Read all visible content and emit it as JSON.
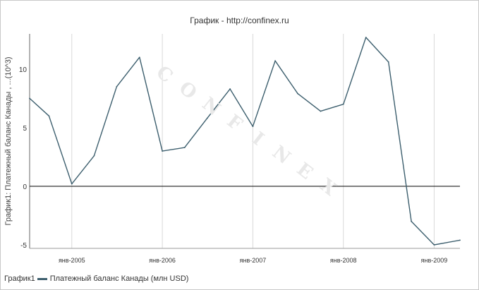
{
  "title": "График - http://confinex.ru",
  "watermark": "CONFINEX",
  "chart_data": {
    "type": "line",
    "ylabel": "График1: Платежный баланс Канады , ...(10^3)",
    "ylim": [
      -5.3,
      13
    ],
    "yticks": [
      -5,
      0,
      5,
      10
    ],
    "xlim": [
      "2004-07-15",
      "2009-04-15"
    ],
    "xticks": [
      {
        "label": "янв-2005",
        "date": "2005-01-01"
      },
      {
        "label": "янв-2006",
        "date": "2006-01-01"
      },
      {
        "label": "янв-2007",
        "date": "2007-01-01"
      },
      {
        "label": "янв-2008",
        "date": "2008-01-01"
      },
      {
        "label": "янв-2009",
        "date": "2009-01-01"
      }
    ],
    "zero_line": true,
    "grid": "vertical",
    "legend": "bottom-left",
    "series": [
      {
        "name": "Платежный баланс Канады (млн USD)",
        "color": "#3d5f6e",
        "points": [
          [
            "2004-07-15",
            7.5
          ],
          [
            "2004-10-01",
            6.0
          ],
          [
            "2005-01-01",
            0.2
          ],
          [
            "2005-04-01",
            2.6
          ],
          [
            "2005-07-01",
            8.5
          ],
          [
            "2005-10-01",
            11.0
          ],
          [
            "2006-01-01",
            3.0
          ],
          [
            "2006-04-01",
            3.3
          ],
          [
            "2006-07-01",
            5.8
          ],
          [
            "2006-10-01",
            8.3
          ],
          [
            "2007-01-01",
            5.1
          ],
          [
            "2007-04-01",
            10.7
          ],
          [
            "2007-07-01",
            7.9
          ],
          [
            "2007-10-01",
            6.4
          ],
          [
            "2008-01-01",
            7.0
          ],
          [
            "2008-04-01",
            12.7
          ],
          [
            "2008-07-01",
            10.6
          ],
          [
            "2008-10-01",
            -3.0
          ],
          [
            "2009-01-01",
            -5.0
          ],
          [
            "2009-04-15",
            -4.6
          ]
        ]
      }
    ]
  }
}
